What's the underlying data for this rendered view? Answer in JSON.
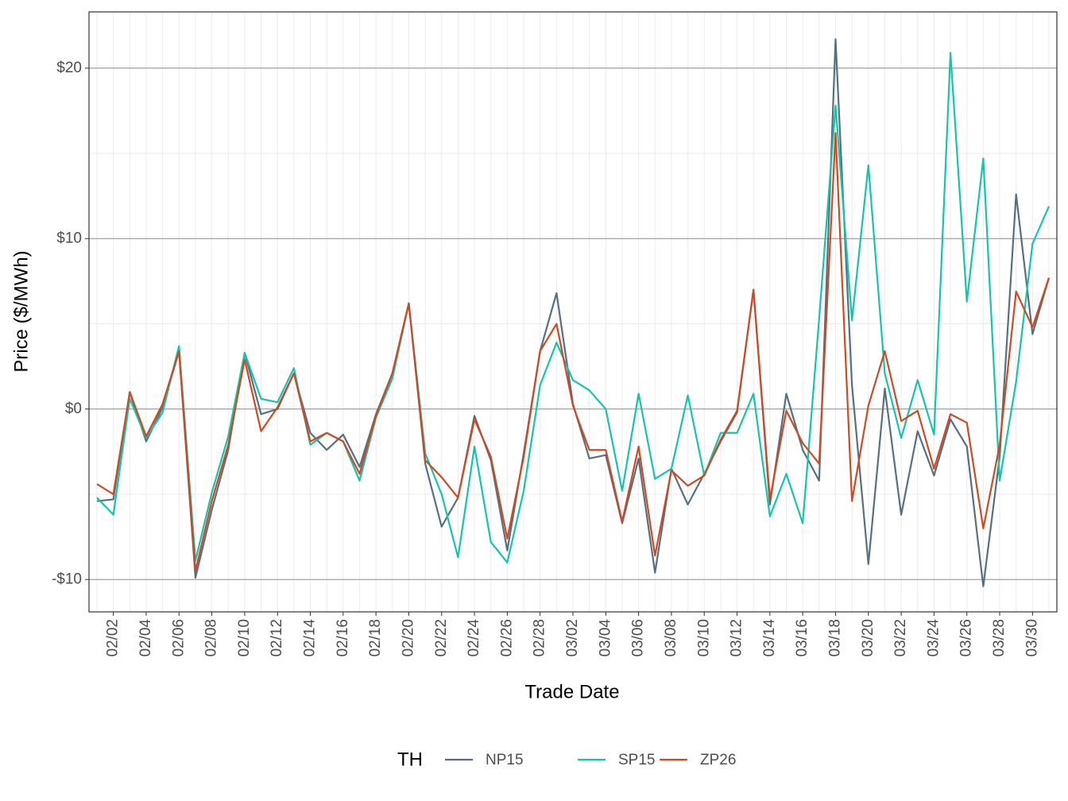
{
  "chart_data": {
    "type": "line",
    "xlabel": "Trade Date",
    "ylabel": "Price ($/MWh)",
    "legend_title": "TH",
    "legend_position": "bottom",
    "grid": true,
    "x": [
      "02/01",
      "02/02",
      "02/03",
      "02/04",
      "02/05",
      "02/06",
      "02/07",
      "02/08",
      "02/09",
      "02/10",
      "02/11",
      "02/12",
      "02/13",
      "02/14",
      "02/15",
      "02/16",
      "02/17",
      "02/18",
      "02/19",
      "02/20",
      "02/21",
      "02/22",
      "02/23",
      "02/24",
      "02/25",
      "02/26",
      "02/27",
      "02/28",
      "03/01",
      "03/02",
      "03/03",
      "03/04",
      "03/05",
      "03/06",
      "03/07",
      "03/08",
      "03/09",
      "03/10",
      "03/11",
      "03/12",
      "03/13",
      "03/14",
      "03/15",
      "03/16",
      "03/17",
      "03/18",
      "03/19",
      "03/20",
      "03/21",
      "03/22",
      "03/23",
      "03/24",
      "03/25",
      "03/26",
      "03/27",
      "03/28",
      "03/29",
      "03/30",
      "03/31"
    ],
    "xticks": [
      "02/02",
      "02/04",
      "02/06",
      "02/08",
      "02/10",
      "02/12",
      "02/14",
      "02/16",
      "02/18",
      "02/20",
      "02/22",
      "02/24",
      "02/26",
      "02/28",
      "03/02",
      "03/04",
      "03/06",
      "03/08",
      "03/10",
      "03/12",
      "03/14",
      "03/16",
      "03/18",
      "03/20",
      "03/22",
      "03/24",
      "03/26",
      "03/28",
      "03/30"
    ],
    "ylim": [
      -11.9,
      23.3
    ],
    "yticks": [
      {
        "value": -10,
        "label": "-$10"
      },
      {
        "value": 0,
        "label": "$0"
      },
      {
        "value": 10,
        "label": "$10"
      },
      {
        "value": 20,
        "label": "$20"
      }
    ],
    "y_minor_ticks": [
      -5,
      5,
      15
    ],
    "series": [
      {
        "name": "NP15",
        "color": "#56707f",
        "values": [
          -5.4,
          -5.3,
          1.0,
          -1.9,
          0.1,
          3.4,
          -9.9,
          -5.9,
          -2.4,
          3.3,
          -0.3,
          0.0,
          2.1,
          -1.4,
          -2.4,
          -1.5,
          -3.4,
          -0.3,
          2.1,
          6.2,
          -3.2,
          -6.9,
          -5.2,
          -0.4,
          -3.0,
          -8.3,
          -2.6,
          3.4,
          6.8,
          0.3,
          -2.9,
          -2.7,
          -6.7,
          -2.9,
          -9.6,
          -3.5,
          -5.6,
          -3.8,
          -1.9,
          -0.2,
          7.0,
          -5.6,
          0.9,
          -2.4,
          -4.2,
          21.7,
          1.4,
          -9.1,
          1.2,
          -6.2,
          -1.3,
          -3.9,
          -0.6,
          -2.2,
          -10.4,
          -2.8,
          12.6,
          4.4,
          7.7
        ]
      },
      {
        "name": "SP15",
        "color": "#14c4ad",
        "values": [
          -5.2,
          -6.2,
          0.6,
          -1.7,
          -0.2,
          3.7,
          -8.9,
          -4.9,
          -1.6,
          3.3,
          0.6,
          0.4,
          2.4,
          -2.1,
          -1.4,
          -1.9,
          -4.2,
          -0.5,
          1.8,
          6.2,
          -2.6,
          -5.0,
          -8.7,
          -2.2,
          -7.8,
          -9.0,
          -4.8,
          1.4,
          3.9,
          1.7,
          1.1,
          0.0,
          -4.8,
          0.9,
          -4.1,
          -3.5,
          0.8,
          -3.9,
          -1.4,
          -1.4,
          0.9,
          -6.3,
          -3.8,
          -6.7,
          5.3,
          17.8,
          5.2,
          14.3,
          2.1,
          -1.7,
          1.7,
          -1.5,
          20.9,
          6.3,
          14.7,
          -4.2,
          1.6,
          9.7,
          11.9
        ]
      },
      {
        "name": "ZP26",
        "color": "#cc4a24",
        "values": [
          -4.4,
          -5.0,
          1.0,
          -1.6,
          0.3,
          3.4,
          -9.5,
          -5.4,
          -2.1,
          2.9,
          -1.3,
          0.1,
          2.1,
          -1.9,
          -1.4,
          -1.9,
          -3.8,
          -0.4,
          2.1,
          6.2,
          -3.0,
          -4.0,
          -5.2,
          -0.6,
          -2.8,
          -7.6,
          -2.8,
          3.4,
          5.0,
          0.2,
          -2.4,
          -2.4,
          -6.6,
          -2.2,
          -8.6,
          -3.6,
          -4.5,
          -3.9,
          -1.8,
          -0.1,
          7.0,
          -5.3,
          -0.1,
          -2.0,
          -3.2,
          16.2,
          -5.4,
          0.2,
          3.4,
          -0.7,
          -0.1,
          -3.5,
          -0.3,
          -0.8,
          -7.0,
          -2.1,
          6.9,
          4.8,
          7.7
        ]
      }
    ]
  }
}
